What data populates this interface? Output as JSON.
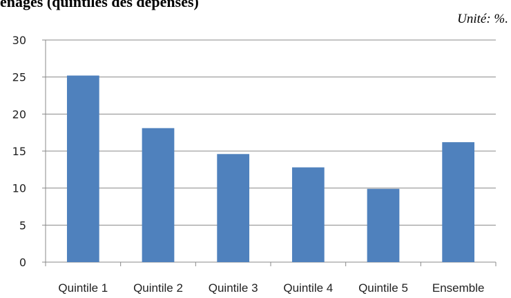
{
  "header": {
    "title_fragment": "énages (quintiles des dépenses)",
    "unit_label": "Unité: %."
  },
  "chart_data": {
    "type": "bar",
    "title": "",
    "xlabel": "",
    "ylabel": "",
    "categories": [
      "Quintile 1",
      "Quintile 2",
      "Quintile 3",
      "Quintile 4",
      "Quintile 5",
      "Ensemble"
    ],
    "values": [
      25.2,
      18.1,
      14.6,
      12.8,
      9.9,
      16.2
    ],
    "ylim": [
      0,
      30
    ],
    "yticks": [
      0,
      5,
      10,
      15,
      20,
      25,
      30
    ],
    "grid": true,
    "bar_color": "#4f81bd",
    "grid_color": "#888888"
  }
}
